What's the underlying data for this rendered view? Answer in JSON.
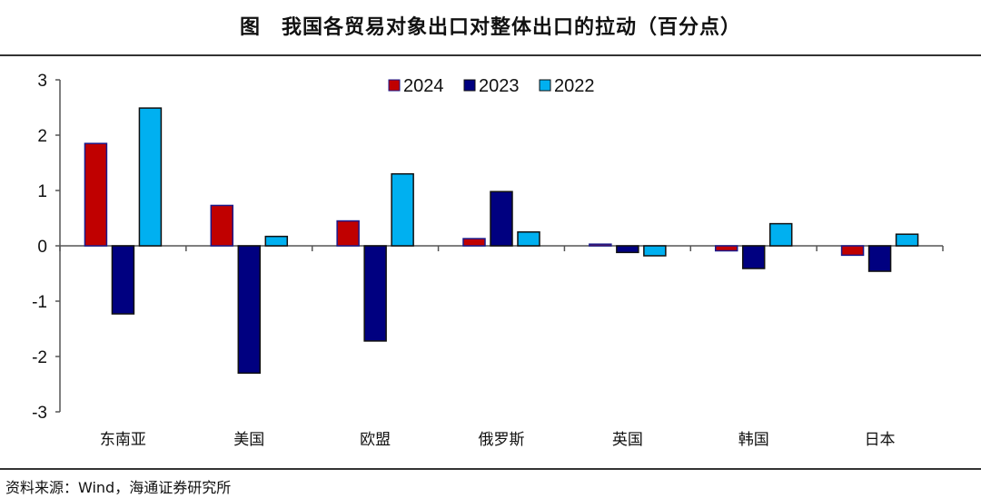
{
  "title": "图　我国各贸易对象出口对整体出口的拉动（百分点）",
  "source": "资料来源：Wind，海通证券研究所",
  "chart_data": {
    "type": "bar",
    "title": "图　我国各贸易对象出口对整体出口的拉动（百分点）",
    "xlabel": "",
    "ylabel": "",
    "ylim": [
      -3,
      3
    ],
    "yticks": [
      "3",
      "2",
      "1",
      "0",
      "-1",
      "-2",
      "-3"
    ],
    "grid": false,
    "legend_position": "top-center",
    "categories": [
      "东南亚",
      "美国",
      "欧盟",
      "俄罗斯",
      "英国",
      "韩国",
      "日本"
    ],
    "series": [
      {
        "name": "2024",
        "color": "#C00000",
        "values": [
          1.85,
          0.73,
          0.45,
          0.13,
          0.03,
          -0.09,
          -0.17
        ]
      },
      {
        "name": "2023",
        "color": "#000080",
        "values": [
          -1.23,
          -2.3,
          -1.72,
          0.98,
          -0.12,
          -0.41,
          -0.46
        ]
      },
      {
        "name": "2022",
        "color": "#00B0F0",
        "values": [
          2.49,
          0.17,
          1.3,
          0.25,
          -0.18,
          0.4,
          0.21
        ]
      }
    ]
  }
}
